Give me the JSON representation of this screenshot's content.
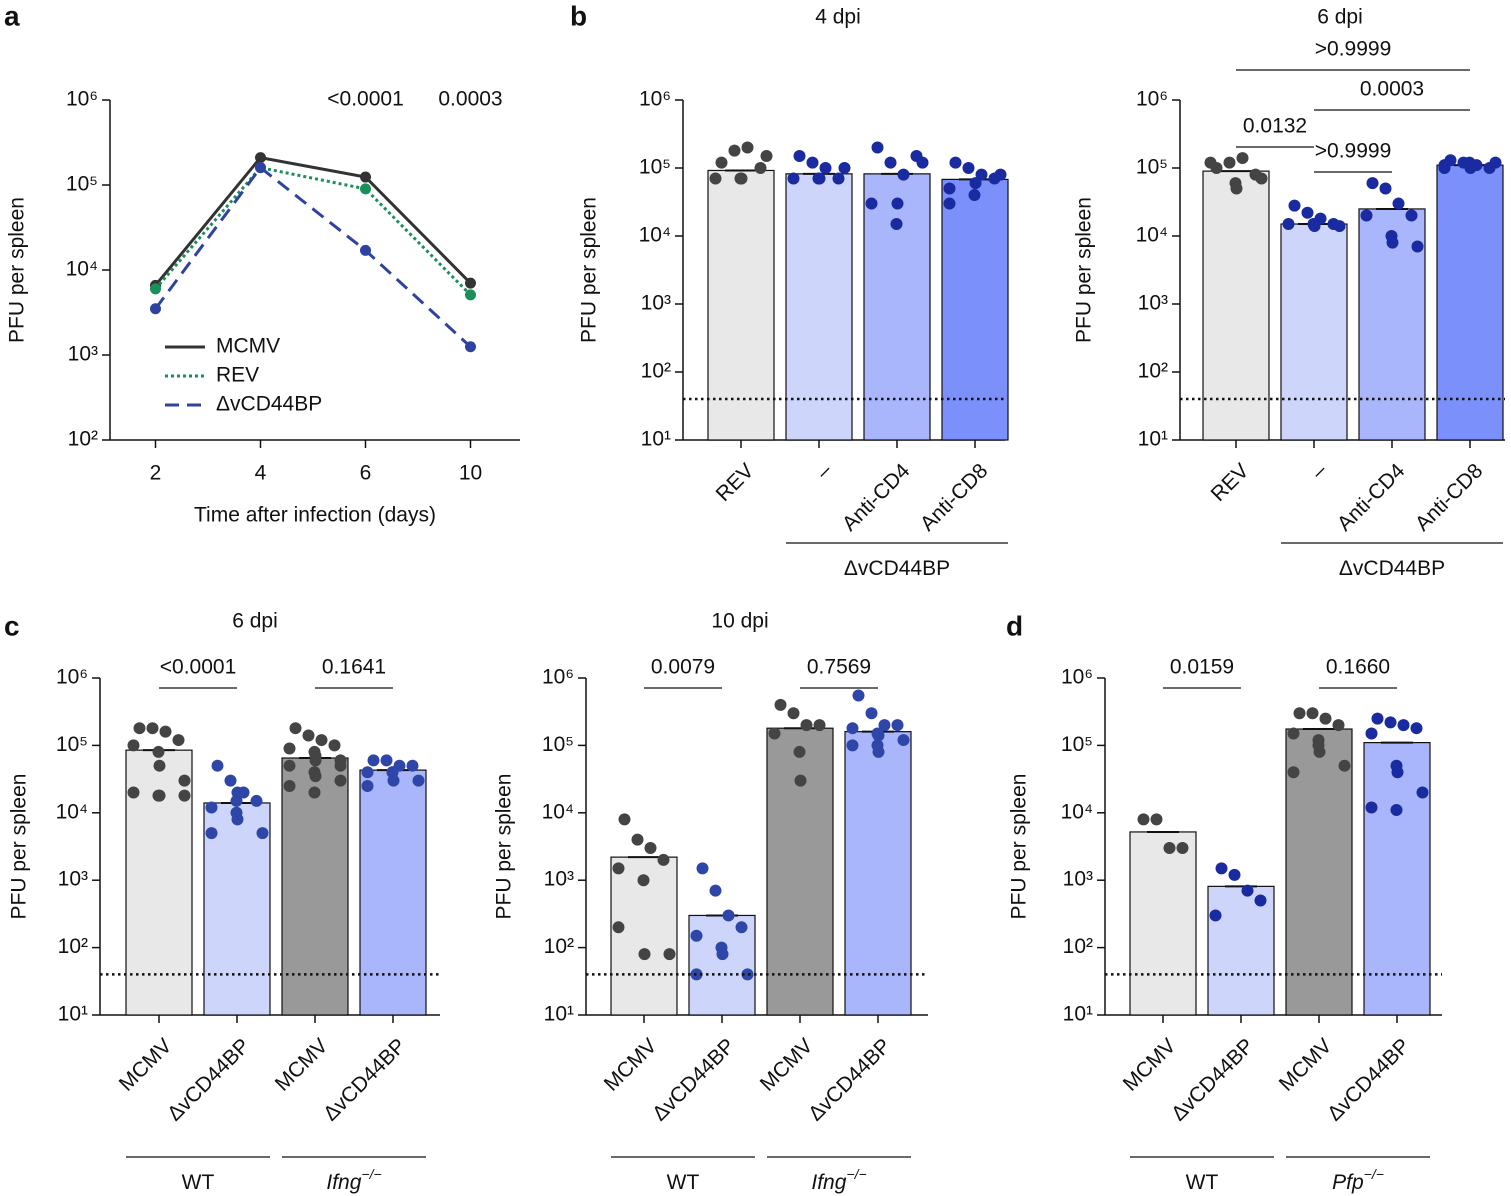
{
  "panels": [
    "a",
    "b",
    "c",
    "d"
  ],
  "chart_data": [
    {
      "type": "line",
      "y_label": "PFU per spleen",
      "x_label": "Time after infection (days)",
      "log": true,
      "categories": [
        "2",
        "4",
        "6",
        "10"
      ],
      "series": [
        {
          "name": "MCMV",
          "color": "#333333",
          "dash": "solid",
          "values": [
            6600,
            210000,
            124000,
            7000
          ]
        },
        {
          "name": "REV",
          "color": "#1a8f5a",
          "dash": "dotted",
          "values": [
            6000,
            160000,
            90000,
            5100
          ]
        },
        {
          "name": "ΔvCD44BP",
          "color": "#2e42a0",
          "dash": "dashed",
          "values": [
            3500,
            160000,
            17000,
            1250
          ]
        }
      ],
      "annotations": [
        {
          "label": "<0.0001",
          "at": 2
        },
        {
          "label": "0.0003",
          "at": 3
        }
      ],
      "ylim": [
        100,
        1000000
      ],
      "yticks": [
        {
          "value": 100,
          "label": "10²"
        },
        {
          "value": 1000,
          "label": "10³"
        },
        {
          "value": 10000,
          "label": "10⁴"
        },
        {
          "value": 100000,
          "label": "10⁵"
        },
        {
          "value": 1000000,
          "label": "10⁶"
        }
      ]
    },
    {
      "type": "bar",
      "title": "4 dpi",
      "y_label": "PFU per spleen",
      "log": true,
      "categories": [
        "REV",
        "–",
        "Anti-CD4",
        "Anti-CD8"
      ],
      "groups": [
        {
          "count": 1
        },
        {
          "label": "ΔvCD44BP",
          "count": 3
        }
      ],
      "values": [
        92000,
        82000,
        82000,
        68000
      ],
      "colors": [
        "#e8e8e8",
        "#cdd5fb",
        "#a9b6fb",
        "#7b90fb"
      ],
      "point_colors": [
        "#444444",
        "#1a2aa0",
        "#1a2aa0",
        "#1a2aa0"
      ],
      "points": [
        [
          120000,
          180000,
          200000,
          100000,
          70000,
          70000,
          70000,
          150000
        ],
        [
          150000,
          120000,
          100000,
          70000,
          70000,
          70000,
          70000,
          100000
        ],
        [
          200000,
          120000,
          80000,
          150000,
          30000,
          15000,
          30000,
          120000
        ],
        [
          120000,
          100000,
          80000,
          70000,
          50000,
          40000,
          60000,
          80000,
          30000
        ]
      ],
      "hline": 40,
      "comparisons": [],
      "ylim": [
        10,
        1000000
      ],
      "yticks": [
        {
          "value": 10,
          "label": "10¹"
        },
        {
          "value": 100,
          "label": "10²"
        },
        {
          "value": 1000,
          "label": "10³"
        },
        {
          "value": 10000,
          "label": "10⁴"
        },
        {
          "value": 100000,
          "label": "10⁵"
        },
        {
          "value": 1000000,
          "label": "10⁶"
        }
      ]
    },
    {
      "type": "bar",
      "title": "6 dpi",
      "y_label": "PFU per spleen",
      "log": true,
      "categories": [
        "REV",
        "–",
        "Anti-CD4",
        "Anti-CD8"
      ],
      "groups": [
        {
          "count": 1
        },
        {
          "label": "ΔvCD44BP",
          "count": 3
        }
      ],
      "values": [
        90000,
        15000,
        25000,
        110000
      ],
      "colors": [
        "#e8e8e8",
        "#cdd5fb",
        "#a9b6fb",
        "#7b90fb"
      ],
      "point_colors": [
        "#444444",
        "#1a2aa0",
        "#1a2aa0",
        "#1a2aa0"
      ],
      "points": [
        [
          100000,
          120000,
          140000,
          80000,
          120000,
          60000,
          50000,
          70000
        ],
        [
          28000,
          22000,
          18000,
          15000,
          15000,
          15000,
          14000,
          14000
        ],
        [
          60000,
          50000,
          30000,
          20000,
          20000,
          10000,
          8000,
          7000
        ],
        [
          130000,
          120000,
          110000,
          100000,
          100000,
          120000,
          100000,
          120000,
          110000
        ]
      ],
      "hline": 40,
      "comparisons": [
        {
          "label": ">0.9999",
          "pair": [
            0,
            3
          ]
        },
        {
          "label": "0.0003",
          "pair": [
            1,
            3
          ]
        },
        {
          "label": "0.0132",
          "pair": [
            0,
            1
          ]
        },
        {
          "label": ">0.9999",
          "pair": [
            1,
            2
          ]
        }
      ],
      "ylim": [
        10,
        1000000
      ],
      "yticks": [
        {
          "value": 10,
          "label": "10¹"
        },
        {
          "value": 100,
          "label": "10²"
        },
        {
          "value": 1000,
          "label": "10³"
        },
        {
          "value": 10000,
          "label": "10⁴"
        },
        {
          "value": 100000,
          "label": "10⁵"
        },
        {
          "value": 1000000,
          "label": "10⁶"
        }
      ]
    },
    {
      "type": "bar",
      "title": "6 dpi",
      "y_label": "PFU per spleen",
      "log": true,
      "categories": [
        "MCMV",
        "ΔvCD44BP",
        "MCMV",
        "ΔvCD44BP"
      ],
      "groups": [
        {
          "label": "WT",
          "count": 2
        },
        {
          "label": "Ifng",
          "sup": "−/−",
          "italic": true,
          "count": 2
        }
      ],
      "values": [
        85000,
        14000,
        65000,
        43000
      ],
      "colors": [
        "#e8e8e8",
        "#cdd5fb",
        "#999999",
        "#a9b6fb"
      ],
      "point_colors": [
        "#444444",
        "#2e46a8",
        "#444444",
        "#2e46a8"
      ],
      "points": [
        [
          180000,
          180000,
          160000,
          120000,
          100000,
          80000,
          50000,
          30000,
          20000,
          18000,
          18000,
          18000
        ],
        [
          50000,
          30000,
          20000,
          15000,
          12000,
          10000,
          8000,
          5000,
          5000,
          15000,
          20000
        ],
        [
          180000,
          140000,
          120000,
          100000,
          90000,
          80000,
          70000,
          60000,
          50000,
          40000,
          35000,
          30000,
          25000,
          20000,
          60000,
          50000
        ],
        [
          60000,
          60000,
          50000,
          50000,
          40000,
          40000,
          30000,
          30000,
          25000,
          40000
        ]
      ],
      "hline": 40,
      "comparisons": [
        {
          "label": "<0.0001",
          "pair": [
            0,
            1
          ]
        },
        {
          "label": "0.1641",
          "pair": [
            2,
            3
          ]
        }
      ],
      "ylim": [
        10,
        1000000
      ],
      "yticks": [
        {
          "value": 10,
          "label": "10¹"
        },
        {
          "value": 100,
          "label": "10²"
        },
        {
          "value": 1000,
          "label": "10³"
        },
        {
          "value": 10000,
          "label": "10⁴"
        },
        {
          "value": 100000,
          "label": "10⁵"
        },
        {
          "value": 1000000,
          "label": "10⁶"
        }
      ]
    },
    {
      "type": "bar",
      "title": "10 dpi",
      "y_label": "PFU per spleen",
      "log": true,
      "categories": [
        "MCMV",
        "ΔvCD44BP",
        "MCMV",
        "ΔvCD44BP"
      ],
      "groups": [
        {
          "label": "WT",
          "count": 2
        },
        {
          "label": "Ifng",
          "sup": "−/−",
          "italic": true,
          "count": 2
        }
      ],
      "values": [
        2200,
        300,
        180000,
        160000
      ],
      "colors": [
        "#e8e8e8",
        "#cdd5fb",
        "#999999",
        "#a9b6fb"
      ],
      "point_colors": [
        "#444444",
        "#2e46a8",
        "#444444",
        "#2e46a8"
      ],
      "points": [
        [
          8000,
          4000,
          3000,
          2000,
          1500,
          1000,
          80,
          80,
          200
        ],
        [
          1500,
          700,
          300,
          200,
          150,
          100,
          80,
          40,
          40
        ],
        [
          400000,
          300000,
          200000,
          200000,
          150000,
          80000,
          30000
        ],
        [
          550000,
          300000,
          200000,
          200000,
          180000,
          150000,
          140000,
          120000,
          100000,
          100000,
          80000
        ]
      ],
      "hline": 40,
      "comparisons": [
        {
          "label": "0.0079",
          "pair": [
            0,
            1
          ]
        },
        {
          "label": "0.7569",
          "pair": [
            2,
            3
          ]
        }
      ],
      "ylim": [
        10,
        1000000
      ],
      "yticks": [
        {
          "value": 10,
          "label": "10¹"
        },
        {
          "value": 100,
          "label": "10²"
        },
        {
          "value": 1000,
          "label": "10³"
        },
        {
          "value": 10000,
          "label": "10⁴"
        },
        {
          "value": 100000,
          "label": "10⁵"
        },
        {
          "value": 1000000,
          "label": "10⁶"
        }
      ]
    },
    {
      "type": "bar",
      "y_label": "PFU per spleen",
      "log": true,
      "categories": [
        "MCMV",
        "ΔvCD44BP",
        "MCMV",
        "ΔvCD44BP"
      ],
      "groups": [
        {
          "label": "WT",
          "count": 2
        },
        {
          "label": "Pfp",
          "sup": "−/−",
          "italic": true,
          "count": 2
        }
      ],
      "values": [
        5200,
        810,
        175000,
        110000
      ],
      "colors": [
        "#e8e8e8",
        "#cdd5fb",
        "#999999",
        "#a9b6fb"
      ],
      "point_colors": [
        "#444444",
        "#1a2aa0",
        "#444444",
        "#1a2aa0"
      ],
      "points": [
        [
          8000,
          8000,
          3000,
          3000
        ],
        [
          1500,
          1200,
          700,
          500,
          300
        ],
        [
          300000,
          300000,
          250000,
          200000,
          150000,
          100000,
          80000,
          50000,
          40000,
          120000
        ],
        [
          250000,
          220000,
          200000,
          180000,
          150000,
          50000,
          40000,
          20000,
          12000,
          11000
        ]
      ],
      "hline": 40,
      "comparisons": [
        {
          "label": "0.0159",
          "pair": [
            0,
            1
          ]
        },
        {
          "label": "0.1660",
          "pair": [
            2,
            3
          ]
        }
      ],
      "ylim": [
        10,
        1000000
      ],
      "yticks": [
        {
          "value": 10,
          "label": "10¹"
        },
        {
          "value": 100,
          "label": "10²"
        },
        {
          "value": 1000,
          "label": "10³"
        },
        {
          "value": 10000,
          "label": "10⁴"
        },
        {
          "value": 100000,
          "label": "10⁵"
        },
        {
          "value": 1000000,
          "label": "10⁶"
        }
      ]
    }
  ]
}
